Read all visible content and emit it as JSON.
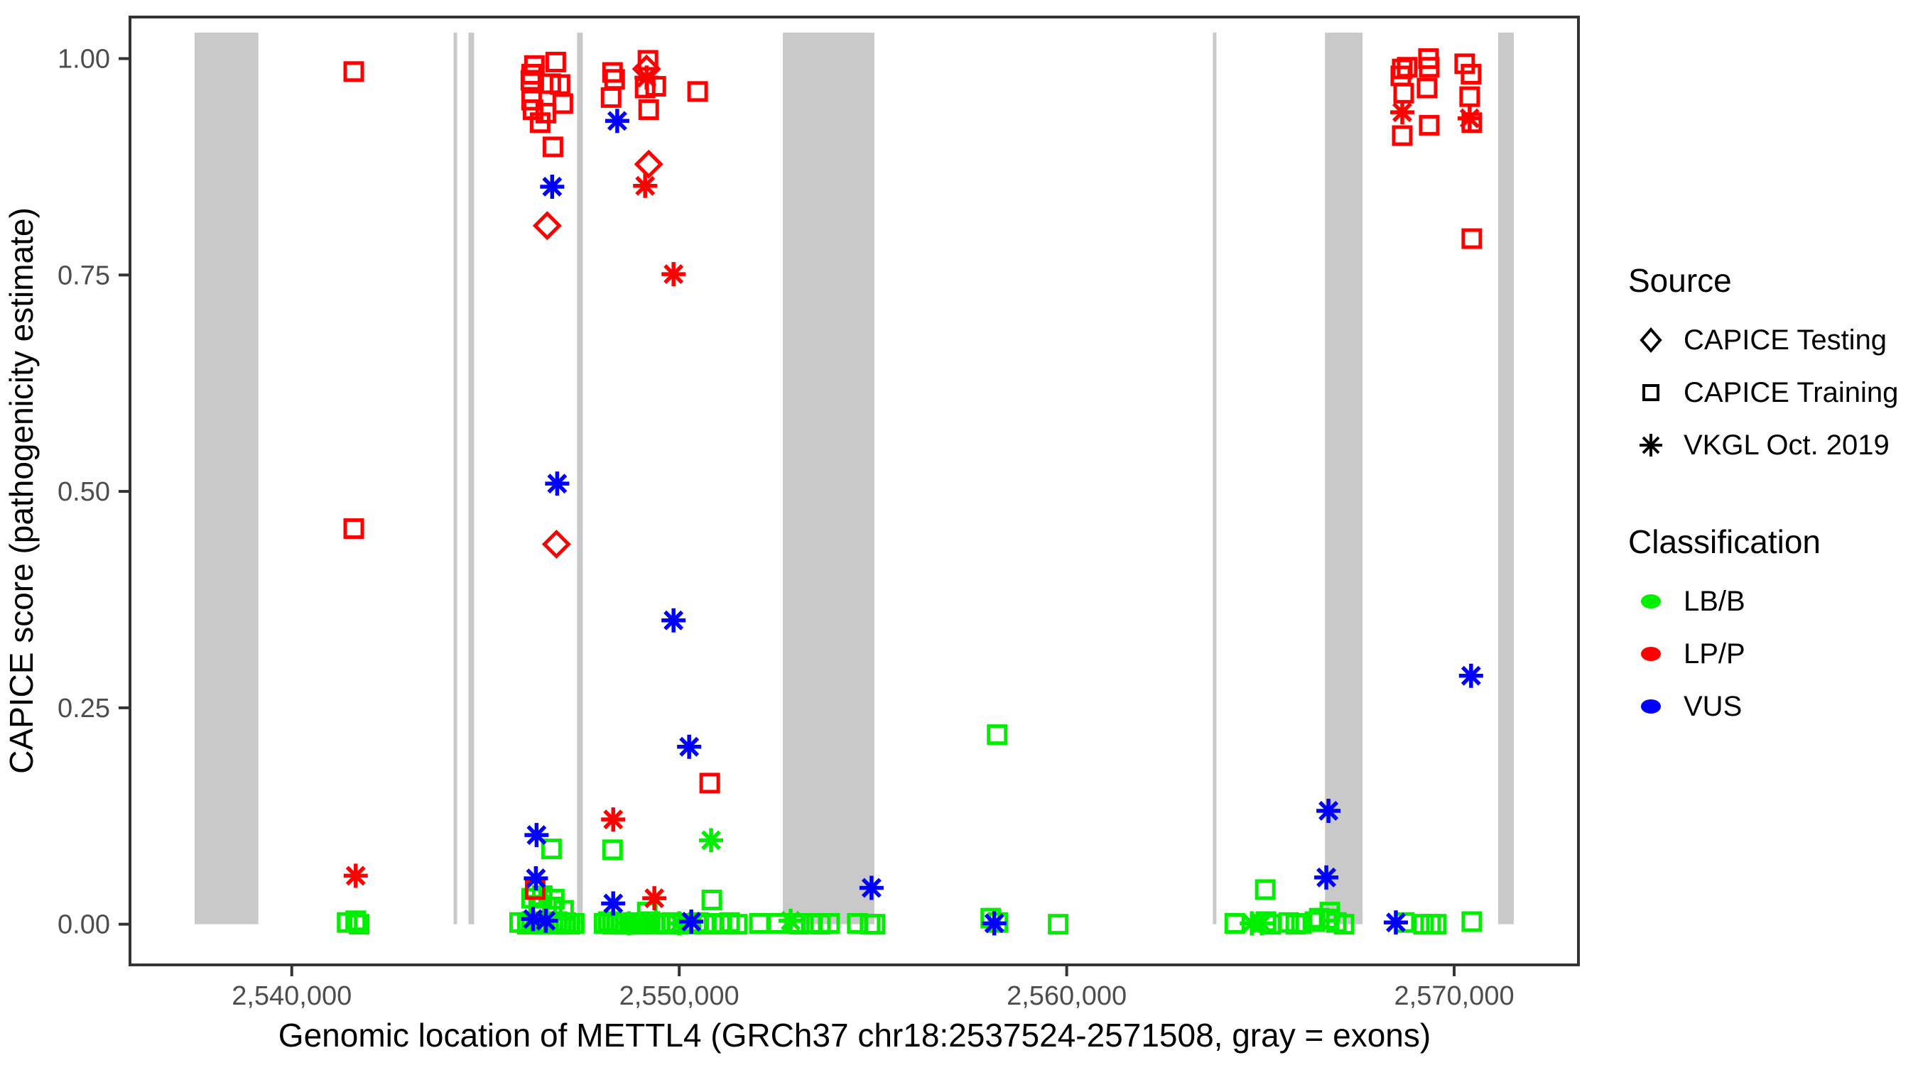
{
  "chart_data": {
    "type": "scatter",
    "xlabel": "Genomic location of METTL4 (GRCh37 chr18:2537524-2571508, gray = exons)",
    "ylabel": "CAPICE score (pathogenicity estimate)",
    "x_domain": [
      2535825,
      2573207
    ],
    "y_domain": [
      -0.047,
      1.048
    ],
    "x_ticks": [
      {
        "value": 2540000,
        "label": "2,540,000"
      },
      {
        "value": 2550000,
        "label": "2,550,000"
      },
      {
        "value": 2560000,
        "label": "2,560,000"
      },
      {
        "value": 2570000,
        "label": "2,570,000"
      }
    ],
    "y_ticks": [
      {
        "value": 0.0,
        "label": "0.00"
      },
      {
        "value": 0.25,
        "label": "0.25"
      },
      {
        "value": 0.5,
        "label": "0.50"
      },
      {
        "value": 0.75,
        "label": "0.75"
      },
      {
        "value": 1.0,
        "label": "1.00"
      }
    ],
    "grid": "off",
    "legend_position": "right",
    "exon_note": "gray = exons",
    "exon_color": "#c9c9c9",
    "exon_band_score_range": [
      0,
      1.03
    ],
    "exons_bp": [
      [
        2537491,
        2539139
      ],
      [
        2544176,
        2544267
      ],
      [
        2544560,
        2544707
      ],
      [
        2547363,
        2547509
      ],
      [
        2552674,
        2555036
      ],
      [
        2563772,
        2563864
      ],
      [
        2566665,
        2567636
      ],
      [
        2571134,
        2571537
      ]
    ],
    "classification_colors": {
      "LB/B": "#00ee00",
      "LP/P": "#ff0000",
      "VUS": "#0000ff"
    },
    "symbol_codes": {
      "sq": "CAPICE Training",
      "di": "CAPICE Testing",
      "as": "VKGL Oct. 2019"
    },
    "point_fields": [
      "bp",
      "score",
      "symbol",
      "classification"
    ],
    "points": [
      [
        2541430,
        0.002,
        "sq",
        "LB/B"
      ],
      [
        2541650,
        0.004,
        "sq",
        "LB/B"
      ],
      [
        2541740,
        0.0,
        "sq",
        "LB/B"
      ],
      [
        2545880,
        0.002,
        "sq",
        "LB/B"
      ],
      [
        2546080,
        0.0,
        "sq",
        "LB/B"
      ],
      [
        2546190,
        0.003,
        "sq",
        "LB/B"
      ],
      [
        2546300,
        0.001,
        "sq",
        "LB/B"
      ],
      [
        2546410,
        0.0,
        "sq",
        "LB/B"
      ],
      [
        2546520,
        0.002,
        "sq",
        "LB/B"
      ],
      [
        2546630,
        0.0,
        "sq",
        "LB/B"
      ],
      [
        2546740,
        0.001,
        "sq",
        "LB/B"
      ],
      [
        2546850,
        0.003,
        "sq",
        "LB/B"
      ],
      [
        2546960,
        0.0,
        "sq",
        "LB/B"
      ],
      [
        2547070,
        0.002,
        "sq",
        "LB/B"
      ],
      [
        2547180,
        0.0,
        "sq",
        "LB/B"
      ],
      [
        2547290,
        0.001,
        "sq",
        "LB/B"
      ],
      [
        2548060,
        0.001,
        "sq",
        "LB/B"
      ],
      [
        2548170,
        0.003,
        "sq",
        "LB/B"
      ],
      [
        2548280,
        0.0,
        "sq",
        "LB/B"
      ],
      [
        2548390,
        0.002,
        "sq",
        "LB/B"
      ],
      [
        2548500,
        0.0,
        "sq",
        "LB/B"
      ],
      [
        2548610,
        0.001,
        "sq",
        "LB/B"
      ],
      [
        2548700,
        0.001,
        "as",
        "LB/B"
      ],
      [
        2548760,
        0.0,
        "sq",
        "LB/B"
      ],
      [
        2548880,
        0.002,
        "sq",
        "LB/B"
      ],
      [
        2549000,
        0.0,
        "sq",
        "LB/B"
      ],
      [
        2549120,
        0.001,
        "sq",
        "LB/B"
      ],
      [
        2549250,
        0.003,
        "sq",
        "LB/B"
      ],
      [
        2549380,
        0.0,
        "sq",
        "LB/B"
      ],
      [
        2549500,
        0.001,
        "sq",
        "LB/B"
      ],
      [
        2549650,
        0.0,
        "sq",
        "LB/B"
      ],
      [
        2549800,
        0.002,
        "sq",
        "LB/B"
      ],
      [
        2549950,
        0.0,
        "sq",
        "LB/B"
      ],
      [
        2550000,
        0.001,
        "as",
        "LB/B"
      ],
      [
        2550100,
        0.001,
        "sq",
        "LB/B"
      ],
      [
        2550300,
        0.0,
        "sq",
        "LB/B"
      ],
      [
        2550500,
        0.002,
        "sq",
        "LB/B"
      ],
      [
        2550700,
        0.0,
        "sq",
        "LB/B"
      ],
      [
        2550900,
        0.001,
        "sq",
        "LB/B"
      ],
      [
        2551100,
        0.0,
        "sq",
        "LB/B"
      ],
      [
        2551300,
        0.002,
        "sq",
        "LB/B"
      ],
      [
        2551500,
        0.0,
        "sq",
        "LB/B"
      ],
      [
        2552069,
        0.001,
        "sq",
        "LB/B"
      ],
      [
        2552545,
        0.001,
        "sq",
        "LB/B"
      ],
      [
        2552875,
        0.004,
        "as",
        "LB/B"
      ],
      [
        2553000,
        0.001,
        "sq",
        "LB/B"
      ],
      [
        2553100,
        0.0,
        "sq",
        "LB/B"
      ],
      [
        2553406,
        0.001,
        "sq",
        "LB/B"
      ],
      [
        2553644,
        0.0,
        "sq",
        "LB/B"
      ],
      [
        2553882,
        0.001,
        "sq",
        "LB/B"
      ],
      [
        2554596,
        0.001,
        "sq",
        "LB/B"
      ],
      [
        2554926,
        0.0,
        "sq",
        "LB/B"
      ],
      [
        2555054,
        0.0,
        "sq",
        "LB/B"
      ],
      [
        2558040,
        0.007,
        "sq",
        "LB/B"
      ],
      [
        2558223,
        0.002,
        "sq",
        "LB/B"
      ],
      [
        2559780,
        0.0,
        "sq",
        "LB/B"
      ],
      [
        2564338,
        0.001,
        "sq",
        "LB/B"
      ],
      [
        2564777,
        0.001,
        "as",
        "LB/B"
      ],
      [
        2565034,
        0.001,
        "as",
        "LB/B"
      ],
      [
        2565143,
        0.003,
        "sq",
        "LB/B"
      ],
      [
        2565272,
        0.0,
        "sq",
        "LB/B"
      ],
      [
        2565729,
        0.002,
        "sq",
        "LB/B"
      ],
      [
        2565913,
        0.0,
        "sq",
        "LB/B"
      ],
      [
        2566059,
        0.001,
        "sq",
        "LB/B"
      ],
      [
        2566407,
        0.003,
        "sq",
        "LB/B"
      ],
      [
        2566517,
        0.007,
        "sq",
        "LB/B"
      ],
      [
        2566774,
        0.006,
        "sq",
        "LB/B"
      ],
      [
        2566792,
        0.014,
        "sq",
        "LB/B"
      ],
      [
        2566957,
        0.002,
        "sq",
        "LB/B"
      ],
      [
        2567158,
        0.0,
        "sq",
        "LB/B"
      ],
      [
        2568715,
        0.002,
        "sq",
        "LB/B"
      ],
      [
        2569209,
        0.0,
        "sq",
        "LB/B"
      ],
      [
        2569392,
        0.0,
        "sq",
        "LB/B"
      ],
      [
        2569539,
        0.0,
        "sq",
        "LB/B"
      ],
      [
        2570455,
        0.003,
        "sq",
        "LB/B"
      ],
      [
        2546703,
        0.087,
        "sq",
        "LB/B"
      ],
      [
        2548278,
        0.086,
        "sq",
        "LB/B"
      ],
      [
        2550823,
        0.097,
        "as",
        "LB/B"
      ],
      [
        2550842,
        0.028,
        "sq",
        "LB/B"
      ],
      [
        2549175,
        0.014,
        "sq",
        "LB/B"
      ],
      [
        2558205,
        0.219,
        "sq",
        "LB/B"
      ],
      [
        2565125,
        0.04,
        "sq",
        "LB/B"
      ],
      [
        2546190,
        0.03,
        "sq",
        "LB/B"
      ],
      [
        2546465,
        0.033,
        "sq",
        "LB/B"
      ],
      [
        2546776,
        0.029,
        "sq",
        "LB/B"
      ],
      [
        2546373,
        0.022,
        "sq",
        "LB/B"
      ],
      [
        2546721,
        0.02,
        "sq",
        "LB/B"
      ],
      [
        2547015,
        0.016,
        "sq",
        "LB/B"
      ],
      [
        2541600,
        0.985,
        "sq",
        "LP/P"
      ],
      [
        2541600,
        0.457,
        "sq",
        "LP/P"
      ],
      [
        2541650,
        0.056,
        "as",
        "LP/P"
      ],
      [
        2546263,
        0.992,
        "sq",
        "LP/P"
      ],
      [
        2546813,
        0.996,
        "sq",
        "LP/P"
      ],
      [
        2546190,
        0.982,
        "sq",
        "LP/P"
      ],
      [
        2546171,
        0.975,
        "sq",
        "LP/P"
      ],
      [
        2546685,
        0.971,
        "sq",
        "LP/P"
      ],
      [
        2546923,
        0.97,
        "sq",
        "LP/P"
      ],
      [
        2546190,
        0.952,
        "sq",
        "LP/P"
      ],
      [
        2546227,
        0.941,
        "sq",
        "LP/P"
      ],
      [
        2546557,
        0.937,
        "sq",
        "LP/P"
      ],
      [
        2546410,
        0.926,
        "sq",
        "LP/P"
      ],
      [
        2546996,
        0.948,
        "sq",
        "LP/P"
      ],
      [
        2546740,
        0.898,
        "sq",
        "LP/P"
      ],
      [
        2546593,
        0.807,
        "di",
        "LP/P"
      ],
      [
        2546831,
        0.439,
        "di",
        "LP/P"
      ],
      [
        2546282,
        0.04,
        "sq",
        "LP/P"
      ],
      [
        2548278,
        0.984,
        "sq",
        "LP/P"
      ],
      [
        2548333,
        0.976,
        "sq",
        "LP/P"
      ],
      [
        2548241,
        0.955,
        "sq",
        "LP/P"
      ],
      [
        2549193,
        0.998,
        "sq",
        "LP/P"
      ],
      [
        2549157,
        0.988,
        "di",
        "LP/P"
      ],
      [
        2549157,
        0.978,
        "as",
        "LP/P"
      ],
      [
        2549120,
        0.966,
        "sq",
        "LP/P"
      ],
      [
        2549395,
        0.968,
        "sq",
        "LP/P"
      ],
      [
        2549212,
        0.941,
        "sq",
        "LP/P"
      ],
      [
        2550475,
        0.962,
        "sq",
        "LP/P"
      ],
      [
        2549212,
        0.878,
        "di",
        "LP/P"
      ],
      [
        2549120,
        0.853,
        "as",
        "LP/P"
      ],
      [
        2549853,
        0.751,
        "as",
        "LP/P"
      ],
      [
        2550787,
        0.163,
        "sq",
        "LP/P"
      ],
      [
        2548296,
        0.121,
        "as",
        "LP/P"
      ],
      [
        2549358,
        0.03,
        "as",
        "LP/P"
      ],
      [
        2568660,
        0.988,
        "sq",
        "LP/P"
      ],
      [
        2568788,
        0.99,
        "sq",
        "LP/P"
      ],
      [
        2568623,
        0.98,
        "sq",
        "LP/P"
      ],
      [
        2569337,
        1.0,
        "sq",
        "LP/P"
      ],
      [
        2569356,
        0.99,
        "sq",
        "LP/P"
      ],
      [
        2569301,
        0.966,
        "sq",
        "LP/P"
      ],
      [
        2570272,
        0.994,
        "sq",
        "LP/P"
      ],
      [
        2570436,
        0.982,
        "sq",
        "LP/P"
      ],
      [
        2568697,
        0.96,
        "sq",
        "LP/P"
      ],
      [
        2568660,
        0.938,
        "as",
        "LP/P"
      ],
      [
        2570400,
        0.956,
        "sq",
        "LP/P"
      ],
      [
        2570400,
        0.931,
        "as",
        "LP/P"
      ],
      [
        2570455,
        0.926,
        "sq",
        "LP/P"
      ],
      [
        2569356,
        0.923,
        "sq",
        "LP/P"
      ],
      [
        2568660,
        0.911,
        "sq",
        "LP/P"
      ],
      [
        2570455,
        0.792,
        "sq",
        "LP/P"
      ],
      [
        2546721,
        0.852,
        "as",
        "VUS"
      ],
      [
        2546850,
        0.509,
        "as",
        "VUS"
      ],
      [
        2546318,
        0.103,
        "as",
        "VUS"
      ],
      [
        2546300,
        0.053,
        "as",
        "VUS"
      ],
      [
        2546227,
        0.006,
        "as",
        "VUS"
      ],
      [
        2546557,
        0.004,
        "as",
        "VUS"
      ],
      [
        2548400,
        0.928,
        "as",
        "VUS"
      ],
      [
        2549853,
        0.351,
        "as",
        "VUS"
      ],
      [
        2550256,
        0.205,
        "as",
        "VUS"
      ],
      [
        2548296,
        0.024,
        "as",
        "VUS"
      ],
      [
        2550311,
        0.003,
        "as",
        "VUS"
      ],
      [
        2554963,
        0.042,
        "as",
        "VUS"
      ],
      [
        2558131,
        0.001,
        "as",
        "VUS"
      ],
      [
        2566755,
        0.131,
        "as",
        "VUS"
      ],
      [
        2566700,
        0.054,
        "as",
        "VUS"
      ],
      [
        2568495,
        0.002,
        "as",
        "VUS"
      ],
      [
        2570436,
        0.287,
        "as",
        "VUS"
      ]
    ]
  },
  "legend": {
    "source": {
      "title": "Source",
      "items": [
        {
          "symbol": "diamond",
          "label": "CAPICE Testing"
        },
        {
          "symbol": "square",
          "label": "CAPICE Training"
        },
        {
          "symbol": "asterisk",
          "label": "VKGL Oct. 2019"
        }
      ]
    },
    "classification": {
      "title": "Classification",
      "items": [
        {
          "color_key": "LB/B",
          "label": "LB/B"
        },
        {
          "color_key": "LP/P",
          "label": "LP/P"
        },
        {
          "color_key": "VUS",
          "label": "VUS"
        }
      ]
    }
  },
  "style": {
    "frame_color": "#333333",
    "tick_label_color": "#4d4d4d",
    "axis_title_color": "#000000"
  }
}
